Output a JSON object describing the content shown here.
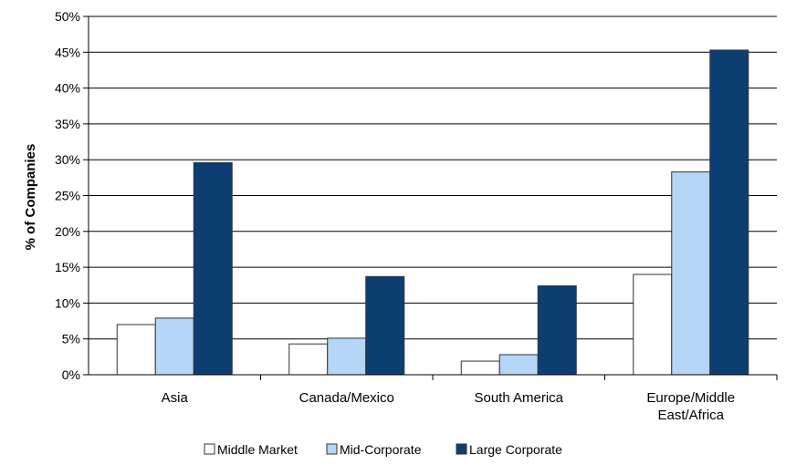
{
  "chart_data": {
    "type": "bar",
    "title": "",
    "xlabel": "",
    "ylabel": "% of Companies",
    "ylim": [
      0,
      50
    ],
    "yticks": [
      "0%",
      "5%",
      "10%",
      "15%",
      "20%",
      "25%",
      "30%",
      "35%",
      "40%",
      "45%",
      "50%"
    ],
    "grid": true,
    "legend_position": "bottom",
    "categories": [
      [
        "Asia"
      ],
      [
        "Canada/Mexico"
      ],
      [
        "South America"
      ],
      [
        "Europe/Middle",
        "East/Africa"
      ]
    ],
    "series": [
      {
        "name": "Middle Market",
        "color": "#ffffff",
        "values": [
          7.0,
          4.3,
          1.9,
          14.0
        ]
      },
      {
        "name": "Mid-Corporate",
        "color": "#b6d6f7",
        "values": [
          7.9,
          5.1,
          2.8,
          28.3
        ]
      },
      {
        "name": "Large Corporate",
        "color": "#0d3e72",
        "values": [
          29.6,
          13.7,
          12.4,
          45.3
        ]
      }
    ]
  }
}
